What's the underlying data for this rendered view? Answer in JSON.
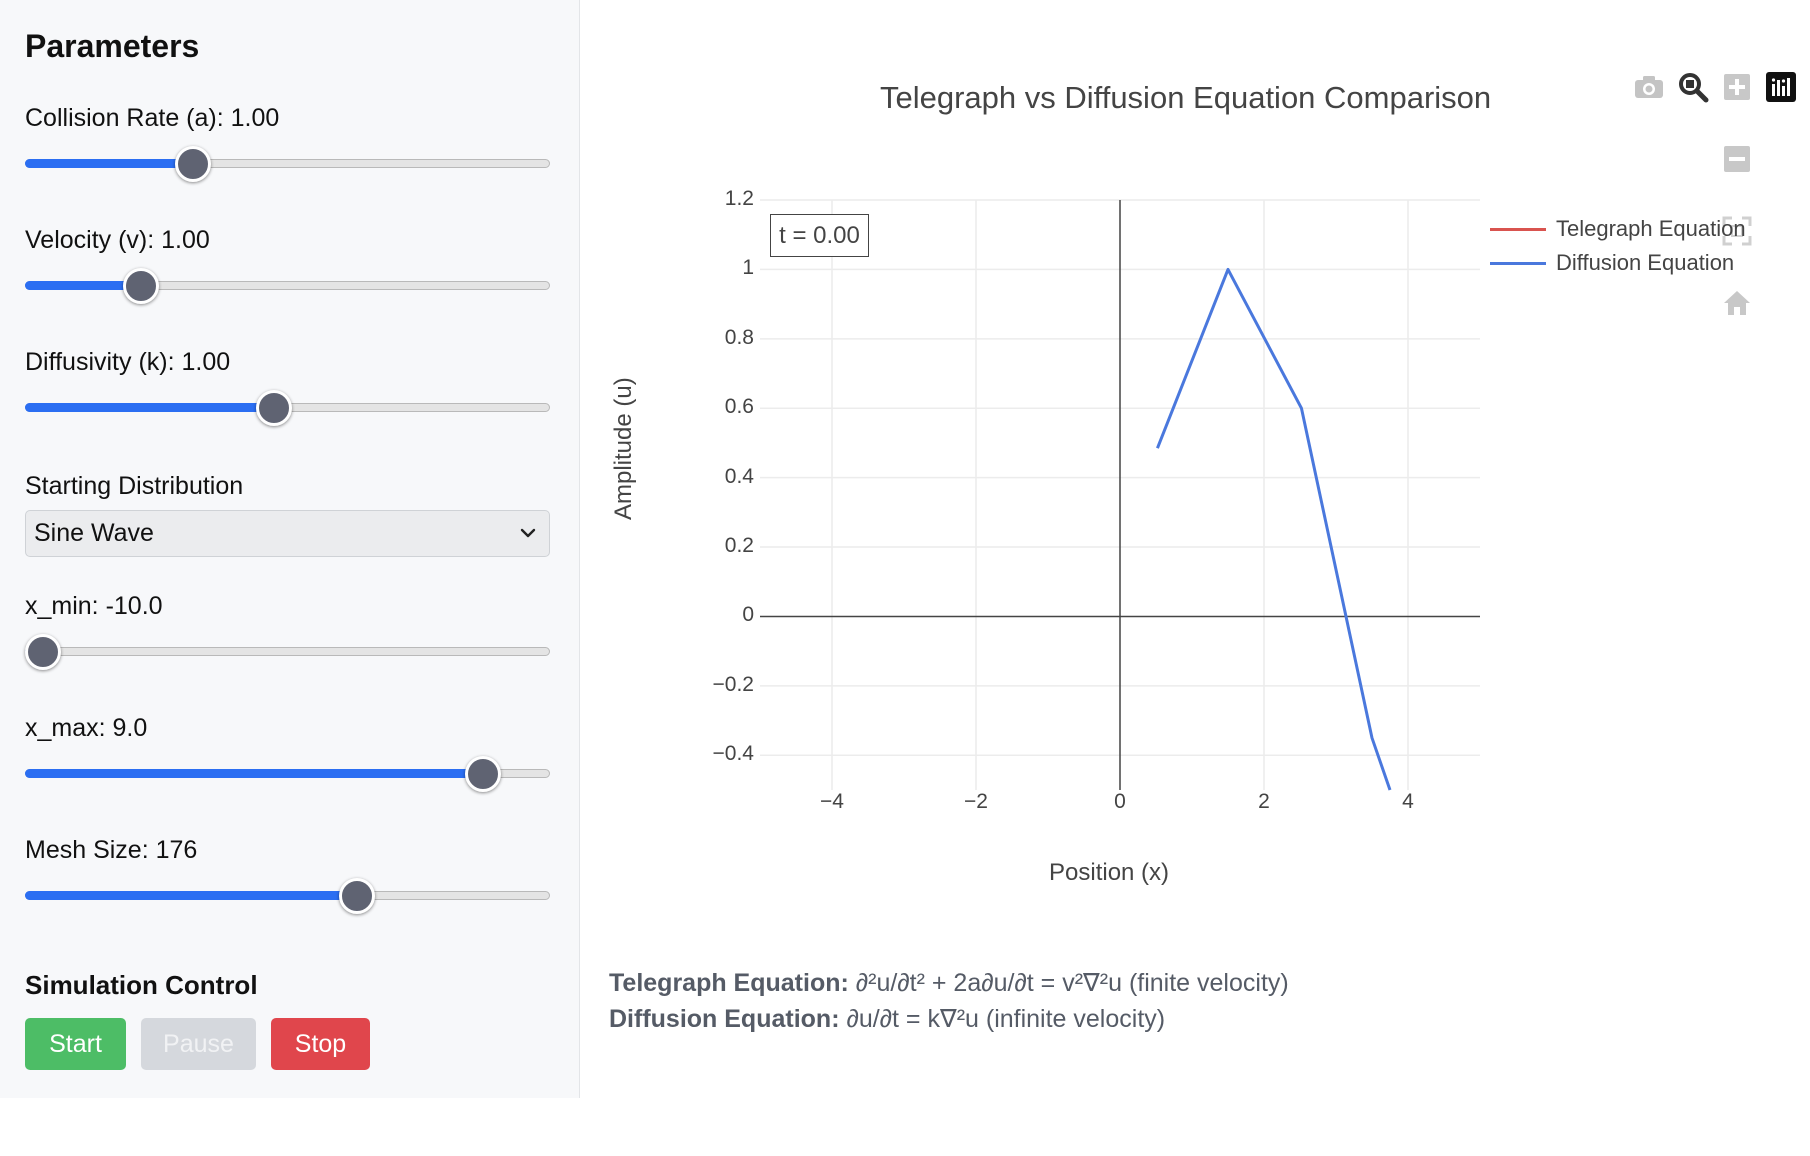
{
  "sidebar": {
    "title": "Parameters",
    "collision_rate": {
      "label": "Collision Rate (a): 1.00",
      "value": 1.0,
      "fraction": 0.32
    },
    "velocity": {
      "label": "Velocity (v): 1.00",
      "value": 1.0,
      "fraction": 0.22
    },
    "diffusivity": {
      "label": "Diffusivity (k): 1.00",
      "value": 1.0,
      "fraction": 0.475
    },
    "distribution": {
      "label": "Starting Distribution",
      "selected": "Sine Wave"
    },
    "x_min": {
      "label": "x_min: -10.0",
      "value": -10.0,
      "fraction": 0.035
    },
    "x_max": {
      "label": "x_max: 9.0",
      "value": 9.0,
      "fraction": 0.873
    },
    "mesh_size": {
      "label": "Mesh Size: 176",
      "value": 176,
      "fraction": 0.633
    },
    "control": {
      "title": "Simulation Control",
      "start_label": "Start",
      "pause_label": "Pause",
      "stop_label": "Stop"
    }
  },
  "chart_data": {
    "type": "line",
    "title": "Telegraph vs Diffusion Equation Comparison",
    "xlabel": "Position (x)",
    "ylabel": "Amplitude (u)",
    "xlim": [
      -5,
      5
    ],
    "ylim": [
      -0.5,
      1.2
    ],
    "xticks": [
      "−4",
      "−2",
      "0",
      "2",
      "4"
    ],
    "xtick_values": [
      -4,
      -2,
      0,
      2,
      4
    ],
    "yticks": [
      "1.2",
      "1",
      "0.8",
      "0.6",
      "0.4",
      "0.2",
      "0",
      "−0.2",
      "−0.4"
    ],
    "ytick_values": [
      1.2,
      1,
      0.8,
      0.6,
      0.4,
      0.2,
      0,
      -0.2,
      -0.4
    ],
    "grid": true,
    "legend_position": "top-right",
    "annotation": "t = 0.00",
    "series": [
      {
        "name": "Telegraph Equation",
        "color": "#d9534f",
        "x": [],
        "y": []
      },
      {
        "name": "Diffusion Equation",
        "color": "#4a78dd",
        "x": [
          0.52,
          1.5,
          2.52,
          3.5,
          3.75
        ],
        "y": [
          0.485,
          1.0,
          0.6,
          -0.35,
          -0.5
        ]
      }
    ]
  },
  "toolbar": [
    "camera-icon",
    "zoom-icon",
    "zoom-in-icon",
    "zoom-out-icon",
    "autoscale-icon",
    "reset-home-icon",
    "plotly-logo-icon"
  ],
  "equations": {
    "telegraph_label": "Telegraph Equation:",
    "telegraph_formula": " ∂²u/∂t² + 2a∂u/∂t = v²∇²u (finite velocity)",
    "diffusion_label": "Diffusion Equation:",
    "diffusion_formula": " ∂u/∂t = k∇²u (infinite velocity)"
  }
}
